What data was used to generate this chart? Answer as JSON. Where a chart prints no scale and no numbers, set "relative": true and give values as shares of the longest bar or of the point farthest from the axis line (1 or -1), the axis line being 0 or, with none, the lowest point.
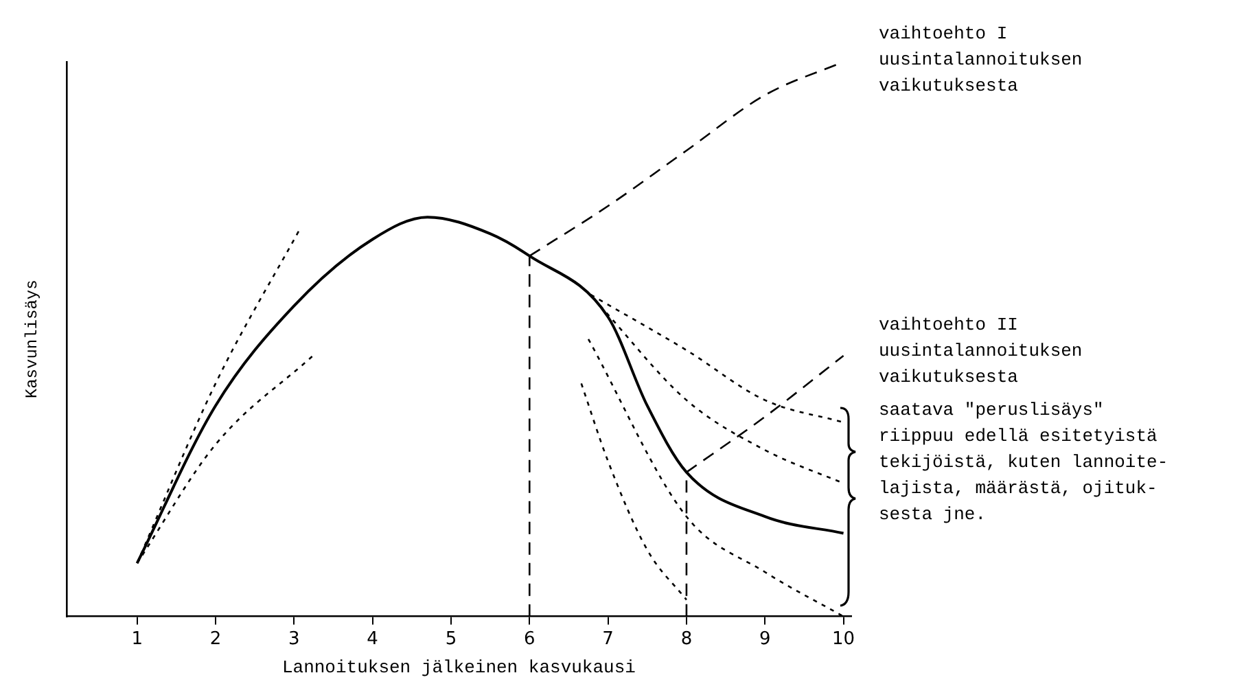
{
  "chart_data": {
    "type": "line",
    "relative": true,
    "xlabel": "Lannoituksen jälkeinen kasvukausi",
    "ylabel": "Kasvunlisäys",
    "xlim": [
      0.1,
      10.1
    ],
    "xticks": [
      1,
      2,
      3,
      4,
      5,
      6,
      7,
      8,
      9,
      10
    ],
    "tick_labels": "x",
    "grid": false,
    "legend": false,
    "marker": "none",
    "annotations": [
      "vaihtoehto I\nuusintalannoituksen\nvaikutuksesta",
      "vaihtoehto II\nuusintalannoituksen\nvaikutuksesta",
      "saatava \"peruslisäys\"\nriippuu edellä esitetyistä\ntekijöistä, kuten lannoite-\nlajista, määrästä, ojituk-\nsesta jne."
    ],
    "series": [
      {
        "color": "#000000",
        "line_style": "solid",
        "x": [
          1,
          2,
          3,
          4,
          4.7,
          5.5,
          6,
          7,
          7.5,
          8,
          9,
          10
        ],
        "values": [
          0.096,
          0.38,
          0.56,
          0.68,
          0.72,
          0.69,
          0.65,
          0.54,
          0.38,
          0.26,
          0.18,
          0.15
        ]
      },
      {
        "color": "#000000",
        "line_style": "dashed",
        "x": [
          6,
          7,
          8,
          9,
          10
        ],
        "values": [
          0.65,
          0.74,
          0.84,
          0.94,
          1
        ]
      },
      {
        "color": "#000000",
        "line_style": "dashed",
        "x": [
          8,
          9,
          10
        ],
        "values": [
          0.26,
          0.36,
          0.47
        ]
      },
      {
        "color": "#000000",
        "line_style": "dashed",
        "x": [
          6,
          6
        ],
        "values": [
          0,
          0.65
        ]
      },
      {
        "color": "#000000",
        "line_style": "dashed",
        "x": [
          8,
          8
        ],
        "values": [
          0,
          0.26
        ]
      },
      {
        "color": "#000000",
        "line_style": "dotted",
        "x": [
          1,
          2,
          3.08
        ],
        "values": [
          0.096,
          0.42,
          0.7
        ]
      },
      {
        "color": "#000000",
        "line_style": "dotted",
        "x": [
          1,
          2,
          3.24
        ],
        "values": [
          0.096,
          0.31,
          0.47
        ]
      },
      {
        "color": "#000000",
        "line_style": "dotted",
        "x": [
          6.78,
          8,
          9,
          10
        ],
        "values": [
          0.58,
          0.48,
          0.39,
          0.35
        ]
      },
      {
        "color": "#000000",
        "line_style": "dotted",
        "x": [
          6.9,
          8,
          9,
          10
        ],
        "values": [
          0.56,
          0.39,
          0.3,
          0.24
        ]
      },
      {
        "color": "#000000",
        "line_style": "dotted",
        "x": [
          6.75,
          8,
          9,
          10
        ],
        "values": [
          0.5,
          0.18,
          0.08,
          0
        ]
      },
      {
        "color": "#000000",
        "line_style": "dotted",
        "x": [
          6.66,
          7,
          7.5,
          8
        ],
        "values": [
          0.42,
          0.28,
          0.12,
          0.03
        ]
      }
    ]
  }
}
